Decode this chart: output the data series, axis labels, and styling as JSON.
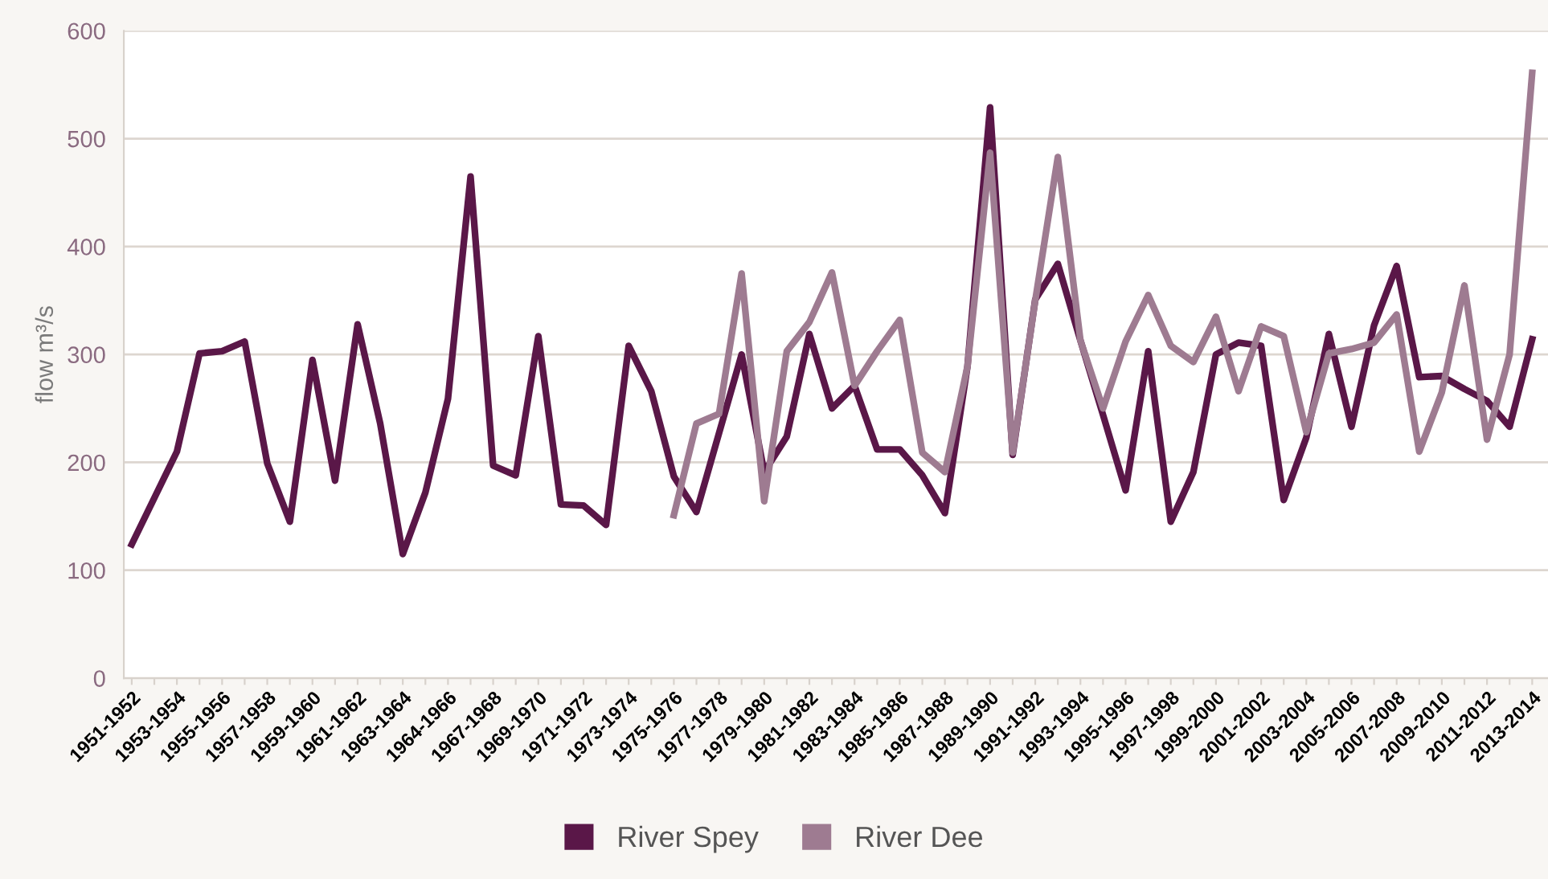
{
  "chart_data": {
    "type": "line",
    "ylabel": "flow m³/s",
    "categories": [
      "1951-1952",
      null,
      "1953-1954",
      null,
      "1955-1956",
      null,
      "1957-1958",
      null,
      "1959-1960",
      null,
      "1961-1962",
      null,
      "1963-1964",
      null,
      "1964-1966",
      null,
      "1967-1968",
      null,
      "1969-1970",
      null,
      "1971-1972",
      null,
      "1973-1974",
      null,
      "1975-1976",
      null,
      "1977-1978",
      null,
      "1979-1980",
      null,
      "1981-1982",
      null,
      "1983-1984",
      null,
      "1985-1986",
      null,
      "1987-1988",
      null,
      "1989-1990",
      null,
      "1991-1992",
      null,
      "1993-1994",
      null,
      "1995-1996",
      null,
      "1997-1998",
      null,
      "1999-2000",
      null,
      "2001-2002",
      null,
      "2003-2004",
      null,
      "2005-2006",
      null,
      "2007-2008",
      null,
      "2009-2010",
      null,
      "2011-2012",
      null,
      "2013-2014"
    ],
    "series": [
      {
        "name": "River Spey",
        "color": "#5a1748",
        "values": [
          124,
          167,
          210,
          301,
          303,
          312,
          199,
          145,
          295,
          183,
          328,
          236,
          115,
          172,
          259,
          465,
          197,
          188,
          317,
          161,
          160,
          142,
          308,
          266,
          187,
          154,
          227,
          300,
          191,
          224,
          319,
          250,
          271,
          212,
          212,
          188,
          153,
          289,
          529,
          207,
          351,
          384,
          313,
          244,
          174,
          303,
          145,
          191,
          300,
          311,
          308,
          165,
          223,
          319,
          233,
          327,
          382,
          279,
          280,
          268,
          257,
          233,
          314
        ]
      },
      {
        "name": "River Dee",
        "color": "#9e7b91",
        "values": [
          null,
          null,
          null,
          null,
          null,
          null,
          null,
          null,
          null,
          null,
          null,
          null,
          null,
          null,
          null,
          null,
          null,
          null,
          null,
          null,
          null,
          null,
          null,
          null,
          151,
          236,
          245,
          375,
          164,
          303,
          330,
          376,
          271,
          303,
          332,
          209,
          191,
          289,
          487,
          209,
          350,
          483,
          313,
          250,
          312,
          355,
          308,
          293,
          335,
          266,
          326,
          317,
          228,
          301,
          305,
          311,
          337,
          210,
          265,
          364,
          221,
          300,
          561
        ]
      }
    ],
    "ylim": [
      0,
      600
    ],
    "yticks": [
      0,
      100,
      200,
      300,
      400,
      500,
      600
    ],
    "grid": "y",
    "legend": "bottom",
    "marker": "none",
    "line_style": "solid"
  }
}
